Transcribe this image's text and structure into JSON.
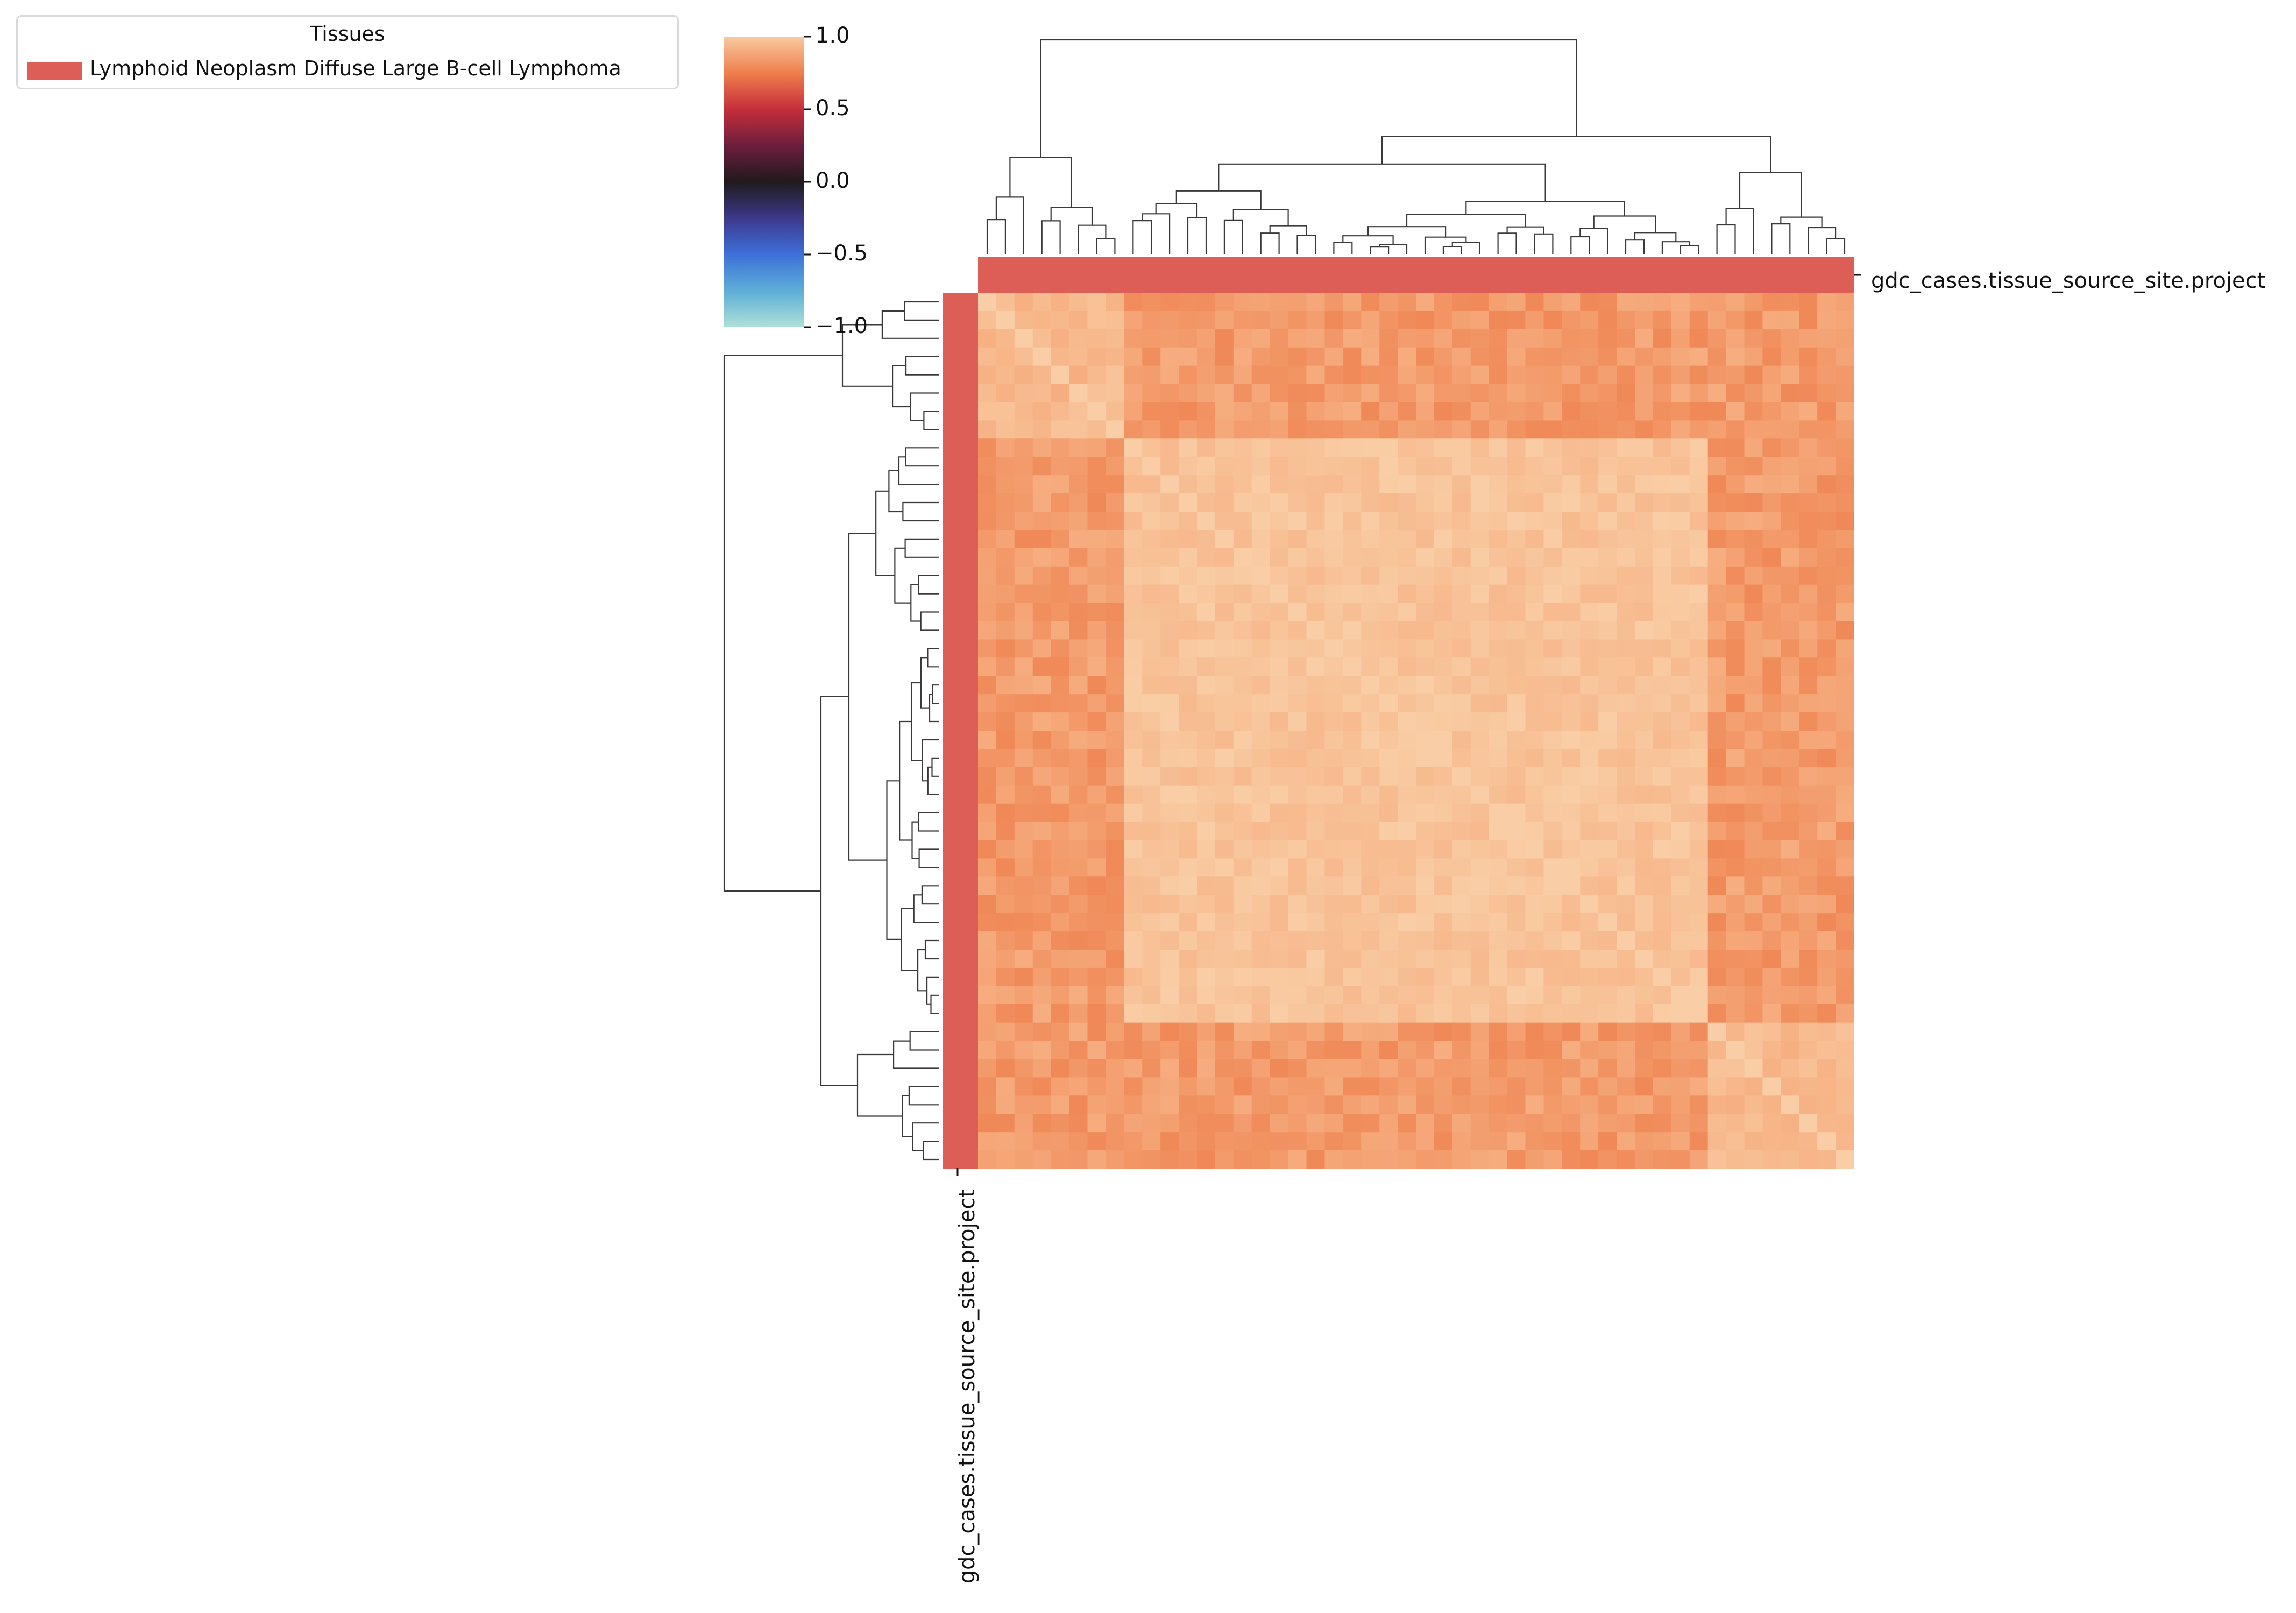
{
  "legend": {
    "title": "Tissues",
    "entries": [
      {
        "label": "Lymphoid Neoplasm Diffuse Large B-cell Lymphoma",
        "color": "#dd5e57"
      }
    ]
  },
  "chart_data": {
    "type": "heatmap",
    "subtype": "clustermap",
    "n_samples": 48,
    "value_range": [
      -1.0,
      1.0
    ],
    "colormap": "icefire",
    "colorbar": {
      "ticks": [
        1.0,
        0.5,
        0.0,
        -0.5,
        -1.0
      ],
      "tick_labels": [
        "1.0",
        "0.5",
        "0.0",
        "−0.5",
        "−1.0"
      ]
    },
    "row_annotation_label": "gdc_cases.tissue_source_site.project",
    "col_annotation_label": "gdc_cases.tissue_source_site.project",
    "annotation_color": "#dd5e57",
    "cluster_groups": [
      {
        "start": 0,
        "size": 8
      },
      {
        "start": 8,
        "size": 32
      },
      {
        "start": 40,
        "size": 8
      }
    ],
    "correlation_summary": {
      "within_main_cluster": 0.95,
      "within_small_clusters": 0.9,
      "between_clusters": 0.8,
      "diagonal": 1.0
    },
    "grid": false
  }
}
